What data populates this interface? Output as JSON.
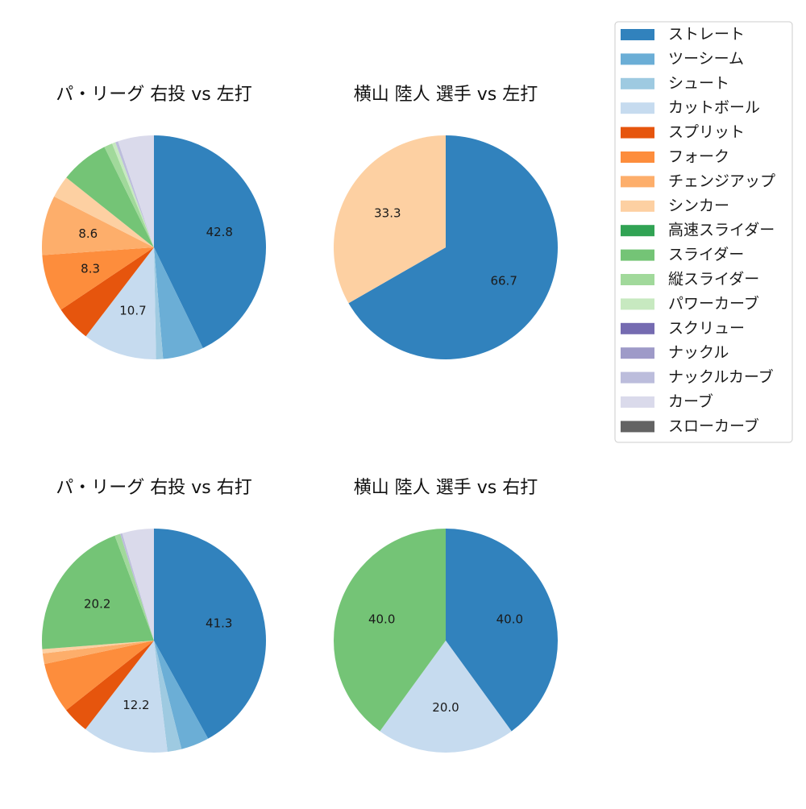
{
  "legend": {
    "items": [
      {
        "label": "ストレート",
        "color": "#3182bd"
      },
      {
        "label": "ツーシーム",
        "color": "#6baed6"
      },
      {
        "label": "シュート",
        "color": "#9ecae1"
      },
      {
        "label": "カットボール",
        "color": "#c6dbef"
      },
      {
        "label": "スプリット",
        "color": "#e6550d"
      },
      {
        "label": "フォーク",
        "color": "#fd8d3c"
      },
      {
        "label": "チェンジアップ",
        "color": "#fdae6b"
      },
      {
        "label": "シンカー",
        "color": "#fdd0a2"
      },
      {
        "label": "高速スライダー",
        "color": "#31a354"
      },
      {
        "label": "スライダー",
        "color": "#74c476"
      },
      {
        "label": "縦スライダー",
        "color": "#a1d99b"
      },
      {
        "label": "パワーカーブ",
        "color": "#c7e9c0"
      },
      {
        "label": "スクリュー",
        "color": "#756bb1"
      },
      {
        "label": "ナックル",
        "color": "#9e9ac8"
      },
      {
        "label": "ナックルカーブ",
        "color": "#bcbddc"
      },
      {
        "label": "カーブ",
        "color": "#dadaeb"
      },
      {
        "label": "スローカーブ",
        "color": "#636363"
      }
    ]
  },
  "chart_data": [
    {
      "type": "pie",
      "title": "パ・リーグ 右投 vs 左打",
      "slices": [
        {
          "label": "ストレート",
          "value": 42.8,
          "shown_label": "42.8"
        },
        {
          "label": "ツーシーム",
          "value": 5.9,
          "shown_label": ""
        },
        {
          "label": "シュート",
          "value": 1.0,
          "shown_label": ""
        },
        {
          "label": "カットボール",
          "value": 10.7,
          "shown_label": "10.7"
        },
        {
          "label": "スプリット",
          "value": 5.2,
          "shown_label": ""
        },
        {
          "label": "フォーク",
          "value": 8.3,
          "shown_label": "8.3"
        },
        {
          "label": "チェンジアップ",
          "value": 8.6,
          "shown_label": "8.6"
        },
        {
          "label": "シンカー",
          "value": 3.2,
          "shown_label": ""
        },
        {
          "label": "スライダー",
          "value": 7.0,
          "shown_label": ""
        },
        {
          "label": "縦スライダー",
          "value": 1.2,
          "shown_label": ""
        },
        {
          "label": "パワーカーブ",
          "value": 0.5,
          "shown_label": ""
        },
        {
          "label": "ナックルカーブ",
          "value": 0.4,
          "shown_label": ""
        },
        {
          "label": "カーブ",
          "value": 5.2,
          "shown_label": ""
        }
      ]
    },
    {
      "type": "pie",
      "title": "横山 陸人 選手 vs 左打",
      "slices": [
        {
          "label": "ストレート",
          "value": 66.7,
          "shown_label": "66.7"
        },
        {
          "label": "シンカー",
          "value": 33.3,
          "shown_label": "33.3"
        }
      ]
    },
    {
      "type": "pie",
      "title": "パ・リーグ 右投 vs 右打",
      "slices": [
        {
          "label": "ストレート",
          "value": 41.3,
          "shown_label": "41.3"
        },
        {
          "label": "ツーシーム",
          "value": 4.0,
          "shown_label": ""
        },
        {
          "label": "シュート",
          "value": 2.0,
          "shown_label": ""
        },
        {
          "label": "カットボール",
          "value": 12.2,
          "shown_label": "12.2"
        },
        {
          "label": "スプリット",
          "value": 3.8,
          "shown_label": ""
        },
        {
          "label": "フォーク",
          "value": 7.2,
          "shown_label": ""
        },
        {
          "label": "チェンジアップ",
          "value": 1.5,
          "shown_label": ""
        },
        {
          "label": "シンカー",
          "value": 0.6,
          "shown_label": ""
        },
        {
          "label": "スライダー",
          "value": 20.2,
          "shown_label": "20.2"
        },
        {
          "label": "縦スライダー",
          "value": 0.8,
          "shown_label": ""
        },
        {
          "label": "ナックルカーブ",
          "value": 0.3,
          "shown_label": ""
        },
        {
          "label": "カーブ",
          "value": 4.5,
          "shown_label": ""
        }
      ]
    },
    {
      "type": "pie",
      "title": "横山 陸人 選手 vs 右打",
      "slices": [
        {
          "label": "ストレート",
          "value": 40.0,
          "shown_label": "40.0"
        },
        {
          "label": "カットボール",
          "value": 20.0,
          "shown_label": "20.0"
        },
        {
          "label": "スライダー",
          "value": 40.0,
          "shown_label": "40.0"
        }
      ]
    }
  ]
}
